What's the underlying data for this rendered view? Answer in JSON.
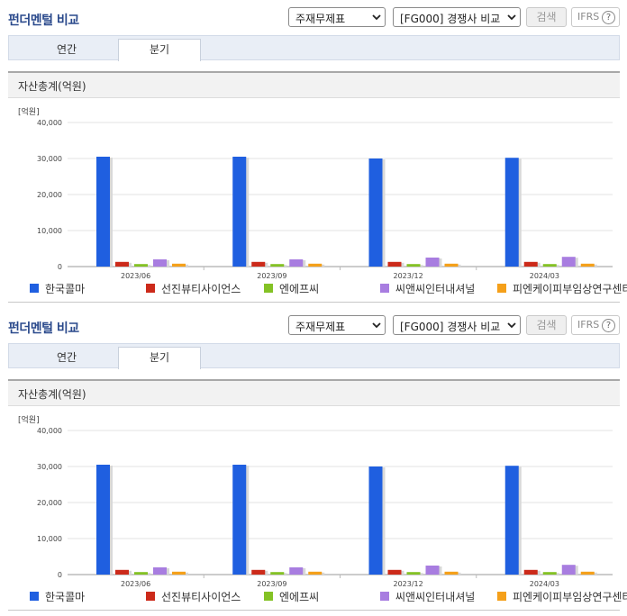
{
  "panels": [
    {
      "title": "펀더멘털 비교",
      "statement_select": "주재무제표",
      "peer_select": "[FG000] 경쟁사 비교",
      "search_label": "검색",
      "ifrs_label": "IFRS",
      "ifrs_help": "?",
      "tabs": [
        "연간",
        "분기"
      ],
      "active_tab": "분기",
      "section_title": "자산총계(억원)",
      "unit_label": "[억원]"
    },
    {
      "title": "펀더멘털 비교",
      "statement_select": "주재무제표",
      "peer_select": "[FG000] 경쟁사 비교",
      "search_label": "검색",
      "ifrs_label": "IFRS",
      "ifrs_help": "?",
      "tabs": [
        "연간",
        "분기"
      ],
      "active_tab": "분기",
      "section_title": "자산총계(억원)",
      "unit_label": "[억원]"
    }
  ],
  "chart_data": [
    {
      "type": "bar",
      "title": "자산총계(억원)",
      "ylabel": "[억원]",
      "ylim": [
        0,
        40000
      ],
      "yticks": [
        "0",
        "10,000",
        "20,000",
        "30,000",
        "40,000"
      ],
      "ytick_values": [
        0,
        10000,
        20000,
        30000,
        40000
      ],
      "categories": [
        "2023/06",
        "2023/09",
        "2023/12",
        "2024/03"
      ],
      "series": [
        {
          "name": "한국콜마",
          "color": "#1f5fe0",
          "values": [
            30500,
            30500,
            30000,
            30200
          ]
        },
        {
          "name": "선진뷰티사이언스",
          "color": "#cc2a1a",
          "values": [
            1300,
            1300,
            1300,
            1300
          ]
        },
        {
          "name": "엔에프씨",
          "color": "#84c225",
          "values": [
            700,
            700,
            700,
            700
          ]
        },
        {
          "name": "씨앤씨인터내셔널",
          "color": "#a87de0",
          "values": [
            2000,
            2000,
            2500,
            2700
          ]
        },
        {
          "name": "피엔케이피부임상연구센타",
          "color": "#f5a01a",
          "values": [
            800,
            800,
            800,
            800
          ]
        }
      ],
      "legend_position": "bottom",
      "grid": true
    },
    {
      "type": "bar",
      "title": "자산총계(억원)",
      "ylabel": "[억원]",
      "ylim": [
        0,
        40000
      ],
      "yticks": [
        "0",
        "10,000",
        "20,000",
        "30,000",
        "40,000"
      ],
      "ytick_values": [
        0,
        10000,
        20000,
        30000,
        40000
      ],
      "categories": [
        "2023/06",
        "2023/09",
        "2023/12",
        "2024/03"
      ],
      "series": [
        {
          "name": "한국콜마",
          "color": "#1f5fe0",
          "values": [
            30500,
            30500,
            30000,
            30200
          ]
        },
        {
          "name": "선진뷰티사이언스",
          "color": "#cc2a1a",
          "values": [
            1300,
            1300,
            1300,
            1300
          ]
        },
        {
          "name": "엔에프씨",
          "color": "#84c225",
          "values": [
            700,
            700,
            700,
            700
          ]
        },
        {
          "name": "씨앤씨인터내셔널",
          "color": "#a87de0",
          "values": [
            2000,
            2000,
            2500,
            2700
          ]
        },
        {
          "name": "피엔케이피부임상연구센타",
          "color": "#f5a01a",
          "values": [
            800,
            800,
            800,
            800
          ]
        }
      ],
      "legend_position": "bottom",
      "grid": true
    }
  ]
}
